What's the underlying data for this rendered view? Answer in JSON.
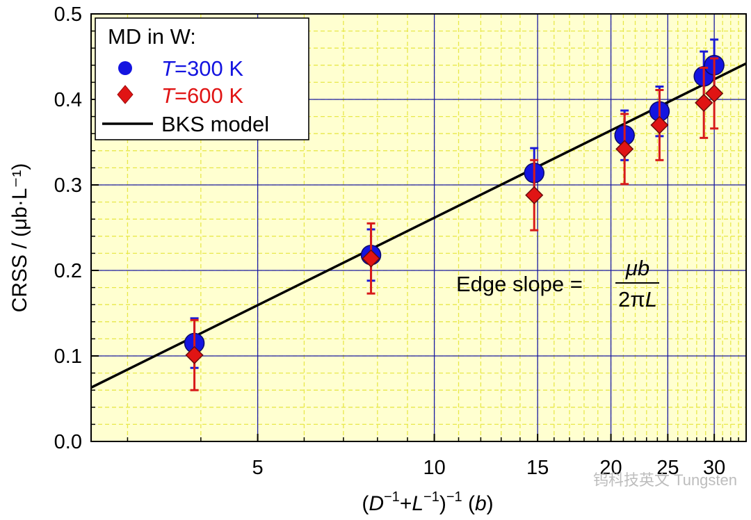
{
  "chart_data": {
    "type": "scatter",
    "title": "",
    "xlabel": {
      "open": "(",
      "d": "D",
      "sup1": "−1",
      "plus": "+",
      "l": "L",
      "sup2": "−1",
      "close": ")",
      "sup3": "−1",
      "b_open": " (",
      "b": "b",
      "b_close": ")"
    },
    "ylabel": "CRSS / (μb·L⁻¹)",
    "xscale": "log",
    "xlim": [
      2.6,
      34
    ],
    "ylim": [
      0.0,
      0.5
    ],
    "xticks": [
      5,
      10,
      15,
      20,
      25,
      30
    ],
    "yticks": [
      0.0,
      0.1,
      0.2,
      0.3,
      0.4,
      0.5
    ],
    "ytick_labels": [
      "0.0",
      "0.1",
      "0.2",
      "0.3",
      "0.4",
      "0.5"
    ],
    "series": [
      {
        "name": "T=300 K",
        "marker": "circle",
        "color": "#1414e0",
        "points": [
          {
            "x": 3.9,
            "y": 0.115,
            "err": 0.029
          },
          {
            "x": 7.8,
            "y": 0.218,
            "err": 0.03
          },
          {
            "x": 14.8,
            "y": 0.314,
            "err": 0.029
          },
          {
            "x": 21.1,
            "y": 0.358,
            "err": 0.029
          },
          {
            "x": 24.2,
            "y": 0.386,
            "err": 0.029
          },
          {
            "x": 28.8,
            "y": 0.427,
            "err": 0.029
          },
          {
            "x": 30.0,
            "y": 0.44,
            "err": 0.03
          }
        ]
      },
      {
        "name": "T=600 K",
        "marker": "diamond",
        "color": "#e01414",
        "points": [
          {
            "x": 3.9,
            "y": 0.101,
            "err": 0.041
          },
          {
            "x": 7.8,
            "y": 0.214,
            "err": 0.041
          },
          {
            "x": 14.8,
            "y": 0.288,
            "err": 0.041
          },
          {
            "x": 21.1,
            "y": 0.342,
            "err": 0.041
          },
          {
            "x": 24.2,
            "y": 0.37,
            "err": 0.041
          },
          {
            "x": 28.8,
            "y": 0.396,
            "err": 0.041
          },
          {
            "x": 30.0,
            "y": 0.407,
            "err": 0.041
          }
        ]
      }
    ],
    "model_line": {
      "name": "BKS model",
      "color": "#000000",
      "points": [
        {
          "x": 2.6,
          "y": 0.063
        },
        {
          "x": 34,
          "y": 0.442
        }
      ]
    },
    "legend": {
      "placement": "top-left",
      "title": "MD in W:",
      "entries": [
        {
          "italic": "T",
          "rest": "=300 K",
          "color": "#1414e0"
        },
        {
          "italic": "T",
          "rest": "=600 K",
          "color": "#e01414"
        },
        {
          "italic": "",
          "rest": "BKS model",
          "color": "#000000"
        }
      ]
    },
    "annotation": {
      "lhs": "Edge slope = ",
      "num": "μb",
      "den_pre": "2π",
      "den_italic": "L"
    },
    "grid": {
      "major": true,
      "minor": true,
      "major_color": "#1a1aa8",
      "minor_color": "#e8e84a",
      "background": "#ffffd0"
    }
  },
  "watermark": "钨科技英文 Tungsten"
}
